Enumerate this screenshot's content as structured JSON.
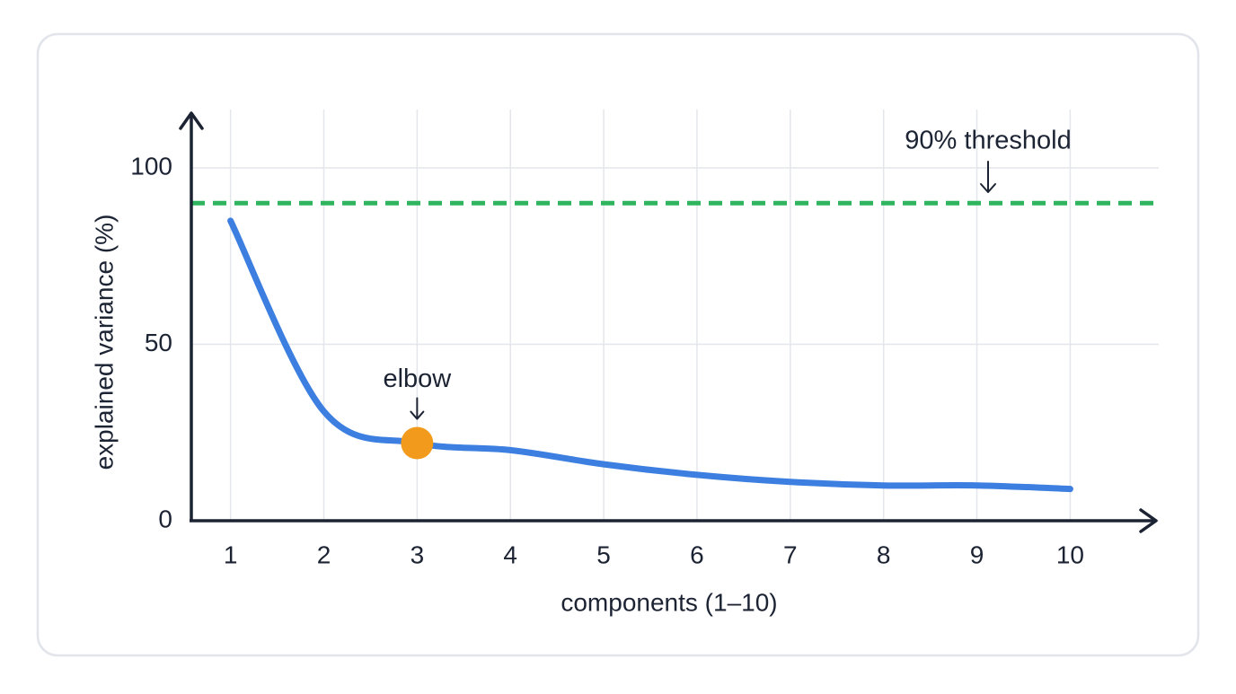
{
  "chart_data": {
    "type": "line",
    "x": [
      1,
      2,
      3,
      4,
      5,
      6,
      7,
      8,
      9,
      10
    ],
    "values": [
      85,
      31,
      22,
      20,
      16,
      13,
      11,
      10,
      10,
      9
    ],
    "color": "#3d7fe0",
    "x_label": "components (1–10)",
    "y_label": "explained variance (%)",
    "xlim": [
      0.58,
      10.93
    ],
    "ylim": [
      0,
      115
    ],
    "xticks": [
      1,
      2,
      3,
      4,
      5,
      6,
      7,
      8,
      9,
      10
    ],
    "yticks": [
      0,
      50,
      100
    ],
    "grid": true,
    "threshold": {
      "value": 90,
      "label": "90% threshold",
      "color": "#2fb55e"
    },
    "elbow": {
      "x": 3,
      "label": "elbow",
      "color": "#f29a1c"
    }
  }
}
